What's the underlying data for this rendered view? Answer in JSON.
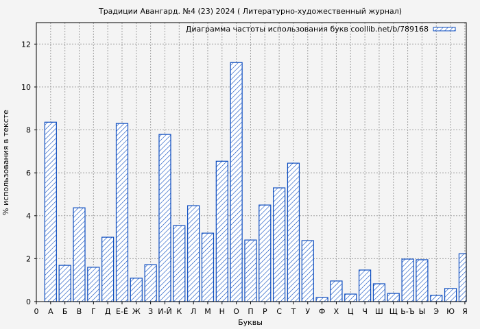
{
  "chart_data": {
    "type": "bar",
    "title": "Традиции  Авангард. №4 (23) 2024 ( Литературно-художественный журнал)",
    "xlabel": "Буквы",
    "ylabel": "% использования в тексте",
    "legend": {
      "label": "Диаграмма частоты использования букв coollib.net/b/789168",
      "placement": "top-right"
    },
    "x_origin_label": "0",
    "categories": [
      "А",
      "Б",
      "В",
      "Г",
      "Д",
      "Е-Ё",
      "Ж",
      "З",
      "И-Й",
      "К",
      "Л",
      "М",
      "Н",
      "О",
      "П",
      "Р",
      "С",
      "Т",
      "У",
      "Ф",
      "Х",
      "Ц",
      "Ч",
      "Ш",
      "Щ",
      "Ь-Ъ",
      "Ы",
      "Э",
      "Ю",
      "Я"
    ],
    "values": [
      8.36,
      1.69,
      4.37,
      1.6,
      3.0,
      8.3,
      1.09,
      1.72,
      7.79,
      3.54,
      4.47,
      3.19,
      6.54,
      11.14,
      2.87,
      4.5,
      5.3,
      6.45,
      2.84,
      0.19,
      0.96,
      0.35,
      1.47,
      0.83,
      0.38,
      1.98,
      1.95,
      0.29,
      0.61,
      2.23
    ],
    "yticks": [
      0,
      2,
      4,
      6,
      8,
      10,
      12
    ],
    "ylim": [
      0,
      13
    ],
    "xlim": [
      0,
      30.1
    ],
    "grid": true,
    "colors": {
      "bar": "#0a4bbf",
      "background": "#f4f4f4",
      "grid": "#a0a0a0"
    }
  }
}
